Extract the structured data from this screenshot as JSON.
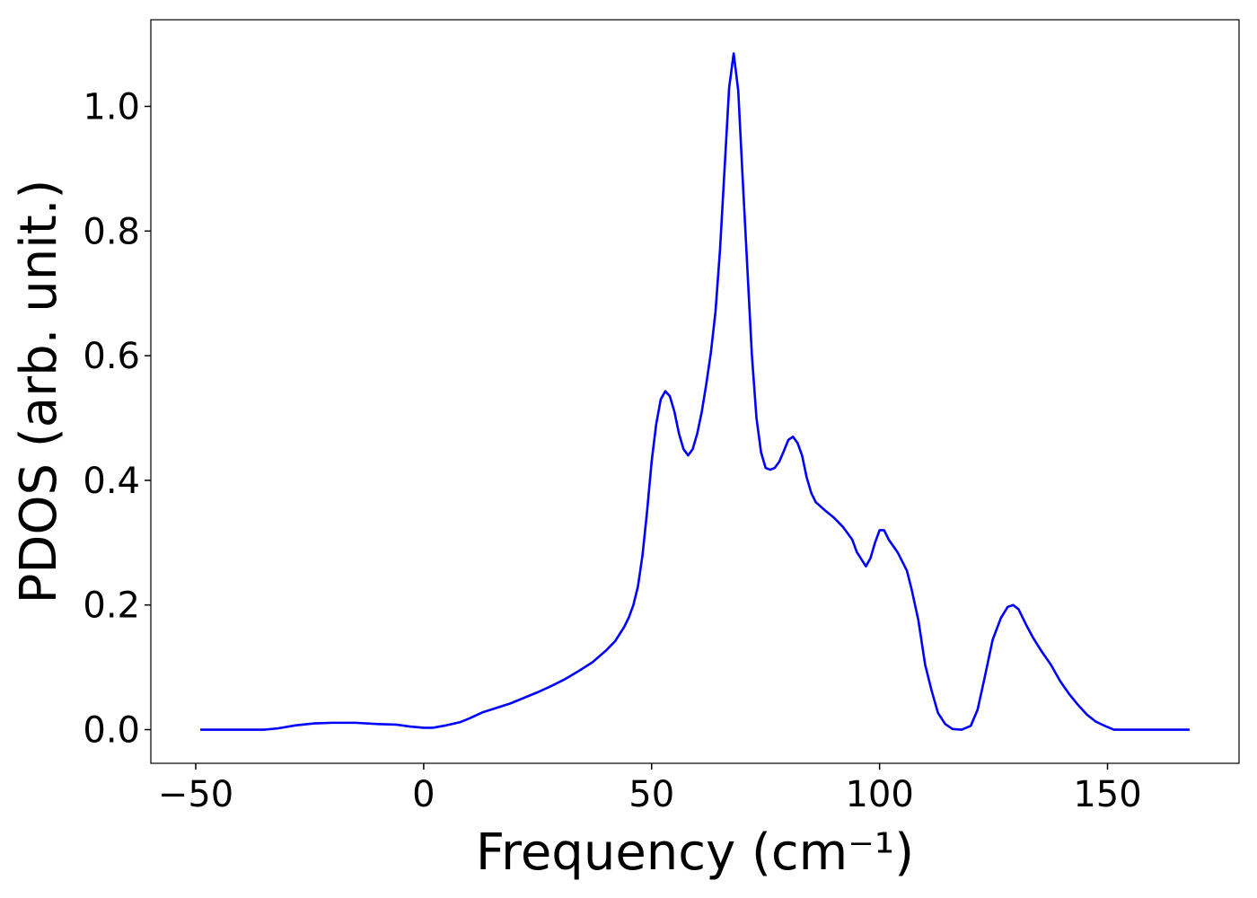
{
  "chart_data": {
    "type": "line",
    "xlabel": "Frequency (cm⁻¹)",
    "ylabel": "PDOS (arb. unit.)",
    "xlim": [
      -59.85,
      178.85
    ],
    "ylim": [
      -0.054,
      1.139
    ],
    "xticks": [
      {
        "value": -50,
        "label": "−50"
      },
      0,
      50,
      100,
      150
    ],
    "yticks": [
      {
        "value": 0,
        "label": "0.0"
      },
      0.2,
      0.4,
      0.6,
      0.8,
      {
        "value": 1,
        "label": "1.0"
      }
    ],
    "grid": false,
    "x": [
      -49,
      -40,
      -35,
      -32,
      -28,
      -24,
      -20,
      -15,
      -10,
      -6,
      -3,
      0,
      2,
      5,
      8,
      10,
      13,
      16,
      19,
      22,
      25,
      28,
      31,
      34,
      37,
      40,
      42,
      44,
      45,
      46,
      47,
      48,
      49,
      50,
      51,
      52,
      53,
      54,
      55,
      56,
      57,
      58,
      59,
      60,
      61,
      62,
      63,
      64,
      65,
      66,
      67,
      68,
      69,
      70,
      71,
      72,
      73,
      74,
      75,
      76,
      77,
      78,
      79,
      80,
      81,
      82,
      83,
      84,
      85,
      86,
      88,
      90,
      92,
      94,
      95,
      97,
      98,
      99,
      100,
      101,
      102,
      104,
      106,
      107,
      108.5,
      110,
      111.4,
      112.8,
      114.4,
      116,
      118,
      120,
      121.5,
      123,
      124.8,
      126.6,
      128.1,
      129.3,
      130.5,
      132.1,
      133.7,
      135.6,
      137.6,
      139.6,
      141.5,
      143.5,
      145.5,
      147.4,
      149.4,
      151.4,
      160,
      168
    ],
    "series": [
      {
        "name": "PDOS",
        "color": "#0000ff",
        "values": [
          0,
          0,
          0,
          0.002,
          0.007,
          0.01,
          0.011,
          0.011,
          0.009,
          0.008,
          0.005,
          0.003,
          0.003,
          0.007,
          0.012,
          0.018,
          0.028,
          0.035,
          0.042,
          0.051,
          0.06,
          0.07,
          0.081,
          0.094,
          0.108,
          0.127,
          0.142,
          0.165,
          0.18,
          0.2,
          0.23,
          0.28,
          0.35,
          0.43,
          0.49,
          0.53,
          0.543,
          0.535,
          0.51,
          0.475,
          0.45,
          0.44,
          0.45,
          0.475,
          0.51,
          0.555,
          0.605,
          0.67,
          0.77,
          0.9,
          1.03,
          1.085,
          1.025,
          0.88,
          0.74,
          0.6,
          0.5,
          0.445,
          0.42,
          0.417,
          0.42,
          0.43,
          0.447,
          0.465,
          0.47,
          0.46,
          0.44,
          0.405,
          0.38,
          0.365,
          0.352,
          0.34,
          0.325,
          0.305,
          0.285,
          0.262,
          0.275,
          0.3,
          0.32,
          0.32,
          0.305,
          0.284,
          0.255,
          0.226,
          0.176,
          0.104,
          0.063,
          0.027,
          0.009,
          0.001,
          0,
          0.006,
          0.032,
          0.082,
          0.144,
          0.179,
          0.197,
          0.2,
          0.193,
          0.169,
          0.147,
          0.125,
          0.104,
          0.078,
          0.058,
          0.04,
          0.024,
          0.013,
          0.006,
          0,
          0,
          0
        ]
      }
    ]
  }
}
